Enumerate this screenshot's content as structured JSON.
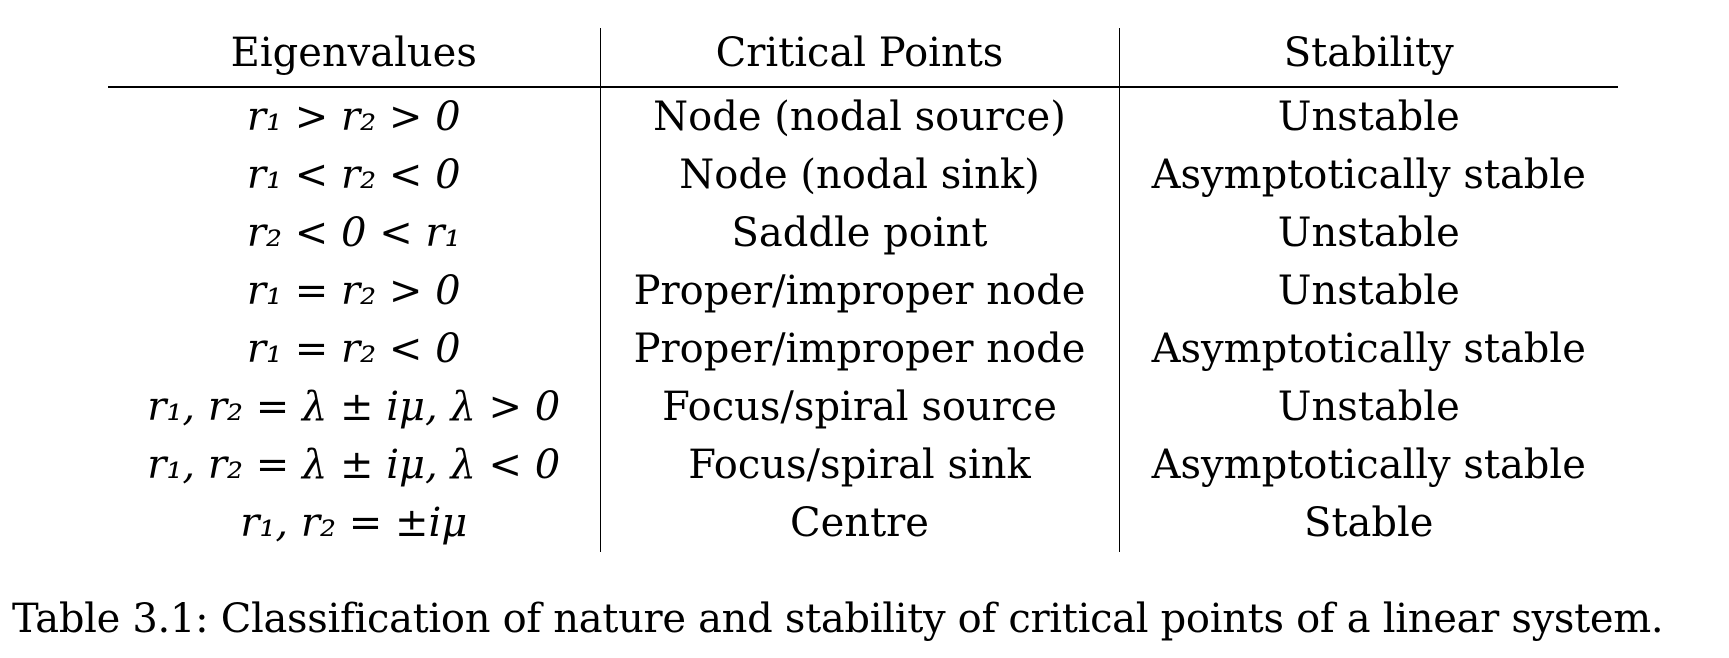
{
  "table": {
    "headers": [
      "Eigenvalues",
      "Critical Points",
      "Stability"
    ],
    "rows": [
      {
        "eigenvalues": "r₁ > r₂ > 0",
        "critical_points": "Node (nodal source)",
        "stability": "Unstable"
      },
      {
        "eigenvalues": "r₁ < r₂ < 0",
        "critical_points": "Node (nodal sink)",
        "stability": "Asymptotically stable"
      },
      {
        "eigenvalues": "r₂ < 0 < r₁",
        "critical_points": "Saddle point",
        "stability": "Unstable"
      },
      {
        "eigenvalues": "r₁ = r₂ > 0",
        "critical_points": "Proper/improper node",
        "stability": "Unstable"
      },
      {
        "eigenvalues": "r₁ = r₂ < 0",
        "critical_points": "Proper/improper node",
        "stability": "Asymptotically stable"
      },
      {
        "eigenvalues": "r₁, r₂ = λ ± iμ, λ > 0",
        "critical_points": "Focus/spiral source",
        "stability": "Unstable"
      },
      {
        "eigenvalues": "r₁, r₂ = λ ± iμ, λ < 0",
        "critical_points": "Focus/spiral sink",
        "stability": "Asymptotically stable"
      },
      {
        "eigenvalues": "r₁, r₂ = ±iμ",
        "critical_points": "Centre",
        "stability": "Stable"
      }
    ]
  },
  "caption": "Table 3.1: Classification of nature and stability of critical points of a linear system."
}
